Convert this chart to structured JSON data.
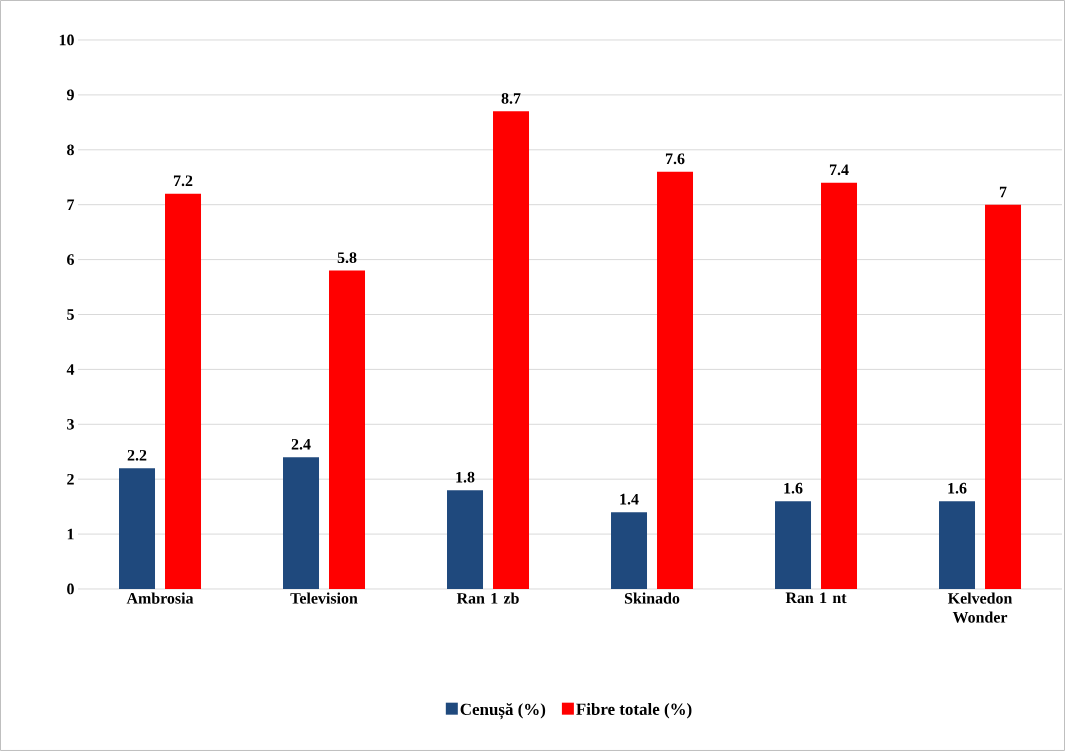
{
  "chart_data": {
    "type": "bar",
    "categories": [
      "Ambrosia",
      "Television",
      "Ran 1 zb",
      "Skinado",
      "Ran 1 nt",
      "Kelvedon Wonder"
    ],
    "series": [
      {
        "name": "Cenușă (%)",
        "color": "#1f497d",
        "values": [
          2.2,
          2.4,
          1.8,
          1.4,
          1.6,
          1.6
        ]
      },
      {
        "name": "Fibre totale (%)",
        "color": "#ff0000",
        "values": [
          7.2,
          5.8,
          8.7,
          7.6,
          7.4,
          7
        ]
      }
    ],
    "ylim": [
      0,
      10
    ],
    "yticks": [
      0,
      1,
      2,
      3,
      4,
      5,
      6,
      7,
      8,
      9,
      10
    ],
    "grid": "y",
    "legend": "bottom",
    "data_labels": true
  }
}
